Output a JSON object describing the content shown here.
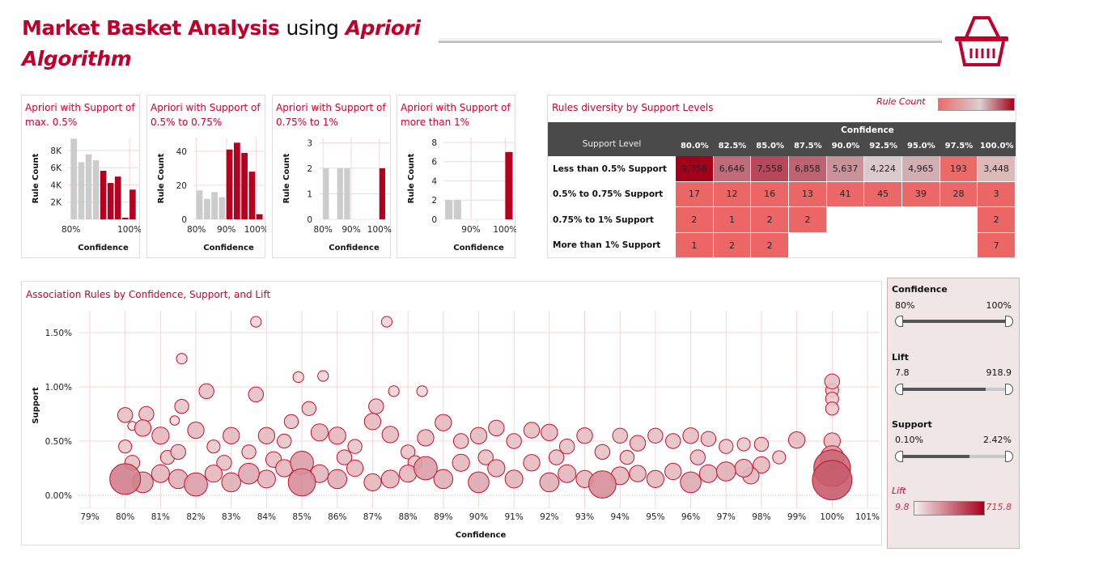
{
  "header": {
    "title_part1": "Market Basket Analysis",
    "title_part2": "using",
    "title_part3": "Apriori",
    "title_part4": "Algorithm",
    "basket_icon": "shopping-basket-icon"
  },
  "colors": {
    "accent": "#c0002a",
    "bar_red": "#b5001f",
    "bar_grey": "#cccccc",
    "header_dark": "#4a4a4a",
    "filter_bg": "#efe6e5"
  },
  "bar_charts": [
    {
      "title_line1": "Apriori with Support of",
      "title_line2": "max. 0.5%",
      "ylabel": "Rule Count",
      "xlabel": "Confidence"
    },
    {
      "title_line1": "Apriori with Support of",
      "title_line2": "0.5% to 0.75%",
      "ylabel": "Rule Count",
      "xlabel": "Confidence"
    },
    {
      "title_line1": "Apriori with Support of",
      "title_line2": "0.75% to 1%",
      "ylabel": "Rule Count",
      "xlabel": "Confidence"
    },
    {
      "title_line1": "Apriori with Support of",
      "title_line2": "more than 1%",
      "ylabel": "Rule Count",
      "xlabel": "Confidence"
    }
  ],
  "heatmap": {
    "title": "Rules diversity by Support Levels",
    "legend_title": "Rule Count",
    "column_group": "Confidence",
    "row_header": "Support Level",
    "columns": [
      "80.0%",
      "82.5%",
      "85.0%",
      "87.5%",
      "90.0%",
      "92.5%",
      "95.0%",
      "97.5%",
      "100.0%"
    ],
    "rows": [
      {
        "label": "Less than 0.5% Support",
        "values": [
          "9,358",
          "6,646",
          "7,558",
          "6,858",
          "5,637",
          "4,224",
          "4,965",
          "193",
          "3,448"
        ]
      },
      {
        "label": "0.5% to 0.75% Support",
        "values": [
          "17",
          "12",
          "16",
          "13",
          "41",
          "45",
          "39",
          "28",
          "3"
        ]
      },
      {
        "label": "0.75% to 1% Support",
        "values": [
          "2",
          "1",
          "2",
          "2",
          "",
          "",
          "",
          "",
          "2"
        ]
      },
      {
        "label": "More than 1% Support",
        "values": [
          "1",
          "2",
          "2",
          "",
          "",
          "",
          "",
          "",
          "7"
        ]
      }
    ]
  },
  "scatter": {
    "title": "Association Rules by Confidence, Support, and Lift"
  },
  "filters": {
    "confidence": {
      "label": "Confidence",
      "min": "80%",
      "max": "100%",
      "low_fraction": 0,
      "high_fraction": 1
    },
    "lift": {
      "label": "Lift",
      "min": "7.8",
      "max": "918.9",
      "low_fraction": 0,
      "high_fraction": 0.78
    },
    "support": {
      "label": "Support",
      "min": "0.10%",
      "max": "2.42%",
      "low_fraction": 0,
      "high_fraction": 0.64
    },
    "lift_legend": {
      "label": "Lift",
      "min": "9.8",
      "max": "715.8"
    }
  },
  "chart_data": [
    {
      "type": "bar",
      "title": "Apriori with Support of max. 0.5%",
      "xlabel": "Confidence",
      "ylabel": "Rule Count",
      "categories": [
        80,
        82.5,
        85,
        87.5,
        90,
        92.5,
        95,
        97.5,
        100
      ],
      "values": [
        9358,
        6646,
        7558,
        6858,
        5637,
        4224,
        4965,
        193,
        3448
      ],
      "highlight_from": 90,
      "xlim": [
        79,
        103
      ],
      "ylim": [
        0,
        9500
      ],
      "yticks": [
        "2K",
        "4K",
        "6K",
        "8K"
      ],
      "ytick_values": [
        2000,
        4000,
        6000,
        8000
      ],
      "xticks": [
        "80%",
        "100%"
      ],
      "xtick_values": [
        80,
        100
      ]
    },
    {
      "type": "bar",
      "title": "Apriori with Support of 0.5% to 0.75%",
      "xlabel": "Confidence",
      "ylabel": "Rule Count",
      "categories": [
        80,
        82.5,
        85,
        87.5,
        90,
        92.5,
        95,
        97.5,
        100
      ],
      "values": [
        17,
        12,
        16,
        13,
        41,
        45,
        39,
        28,
        3
      ],
      "highlight_from": 90,
      "xlim": [
        79,
        102.5
      ],
      "ylim": [
        0,
        48
      ],
      "yticks": [
        "0",
        "20",
        "40"
      ],
      "ytick_values": [
        0,
        20,
        40
      ],
      "xticks": [
        "80%",
        "90%",
        "100%"
      ],
      "xtick_values": [
        80,
        90,
        100
      ]
    },
    {
      "type": "bar",
      "title": "Apriori with Support of 0.75% to 1%",
      "xlabel": "Confidence",
      "ylabel": "Rule Count",
      "categories": [
        80,
        82.5,
        85,
        87.5,
        90,
        92.5,
        95,
        97.5,
        100
      ],
      "values": [
        2,
        0,
        2,
        2,
        0,
        0,
        0,
        0,
        2
      ],
      "highlight_from": 100,
      "xlim": [
        78.5,
        103.5
      ],
      "ylim": [
        0,
        3.2
      ],
      "yticks": [
        "0",
        "1",
        "2",
        "3"
      ],
      "ytick_values": [
        0,
        1,
        2,
        3
      ],
      "xticks": [
        "80%",
        "90%",
        "100%"
      ],
      "xtick_values": [
        80,
        90,
        100
      ]
    },
    {
      "type": "bar",
      "title": "Apriori with Support of more than 1%",
      "xlabel": "Confidence",
      "ylabel": "Rule Count",
      "categories": [
        80,
        82.5,
        85,
        87.5,
        90,
        92.5,
        95,
        97.5,
        100
      ],
      "values": [
        1,
        2,
        2,
        0,
        0,
        0,
        0,
        0,
        7
      ],
      "highlight_from": 100,
      "xlim": [
        82,
        102.5
      ],
      "ylim": [
        0,
        8.5
      ],
      "yticks": [
        "0",
        "2",
        "4",
        "6",
        "8"
      ],
      "ytick_values": [
        0,
        2,
        4,
        6,
        8
      ],
      "xticks": [
        "90%",
        "100%"
      ],
      "xtick_values": [
        90,
        100
      ]
    },
    {
      "type": "scatter",
      "title": "Association Rules by Confidence, Support, and Lift",
      "xlabel": "Confidence",
      "ylabel": "Support",
      "xlim": [
        78.5,
        101.5
      ],
      "ylim": [
        -0.12,
        1.7
      ],
      "xticks": [
        "79%",
        "80%",
        "81%",
        "82%",
        "83%",
        "84%",
        "85%",
        "86%",
        "87%",
        "88%",
        "89%",
        "90%",
        "91%",
        "92%",
        "93%",
        "94%",
        "95%",
        "96%",
        "97%",
        "98%",
        "99%",
        "100%",
        "101%"
      ],
      "yticks": [
        "0.00%",
        "0.50%",
        "1.00%",
        "1.50%"
      ],
      "ytick_values": [
        0,
        0.5,
        1,
        1.5
      ],
      "color_by": "lift",
      "lift_range": [
        9.8,
        715.8
      ],
      "points_conf_support_lift": [
        [
          81.6,
          1.26,
          20
        ],
        [
          82.3,
          0.96,
          60
        ],
        [
          81.6,
          0.82,
          50
        ],
        [
          83.7,
          1.6,
          20
        ],
        [
          83.7,
          0.93,
          60
        ],
        [
          84.9,
          1.09,
          20
        ],
        [
          85.6,
          1.1,
          20
        ],
        [
          87.4,
          1.6,
          20
        ],
        [
          87.6,
          0.96,
          20
        ],
        [
          88.4,
          0.96,
          20
        ],
        [
          80,
          0.74,
          60
        ],
        [
          80.6,
          0.75,
          60
        ],
        [
          80.2,
          0.64,
          10
        ],
        [
          81.4,
          0.69,
          12
        ],
        [
          85.2,
          0.8,
          50
        ],
        [
          87.1,
          0.82,
          60
        ],
        [
          84.7,
          0.68,
          50
        ],
        [
          100,
          1.05,
          60
        ],
        [
          100,
          0.97,
          40
        ],
        [
          100,
          0.89,
          40
        ],
        [
          100,
          0.8,
          40
        ],
        [
          100,
          0.5,
          80
        ],
        [
          100,
          0.35,
          200
        ],
        [
          100,
          0.25,
          600
        ],
        [
          100,
          0.14,
          715
        ],
        [
          99,
          0.51,
          80
        ],
        [
          80,
          0.15,
          400
        ],
        [
          80,
          0.45,
          40
        ],
        [
          80.5,
          0.12,
          150
        ],
        [
          80.5,
          0.62,
          80
        ],
        [
          81,
          0.2,
          100
        ],
        [
          81,
          0.55,
          90
        ],
        [
          81.5,
          0.15,
          120
        ],
        [
          81.5,
          0.4,
          60
        ],
        [
          82,
          0.1,
          200
        ],
        [
          82,
          0.6,
          80
        ],
        [
          82.5,
          0.2,
          90
        ],
        [
          82.5,
          0.45,
          40
        ],
        [
          83,
          0.12,
          120
        ],
        [
          83,
          0.55,
          80
        ],
        [
          83.5,
          0.2,
          150
        ],
        [
          83.5,
          0.4,
          50
        ],
        [
          84,
          0.15,
          100
        ],
        [
          84,
          0.55,
          80
        ],
        [
          84.5,
          0.25,
          90
        ],
        [
          84.5,
          0.5,
          50
        ],
        [
          85,
          0.12,
          300
        ],
        [
          85,
          0.3,
          200
        ],
        [
          85.5,
          0.2,
          100
        ],
        [
          85.5,
          0.58,
          90
        ],
        [
          86,
          0.15,
          120
        ],
        [
          86,
          0.55,
          90
        ],
        [
          86.5,
          0.25,
          80
        ],
        [
          86.5,
          0.45,
          50
        ],
        [
          87,
          0.12,
          90
        ],
        [
          87,
          0.68,
          80
        ],
        [
          87.5,
          0.15,
          100
        ],
        [
          87.5,
          0.56,
          80
        ],
        [
          88,
          0.2,
          90
        ],
        [
          88,
          0.4,
          50
        ],
        [
          88.5,
          0.25,
          200
        ],
        [
          88.5,
          0.53,
          80
        ],
        [
          89,
          0.15,
          120
        ],
        [
          89,
          0.67,
          80
        ],
        [
          89.5,
          0.3,
          90
        ],
        [
          89.5,
          0.5,
          60
        ],
        [
          90,
          0.12,
          150
        ],
        [
          90,
          0.55,
          80
        ],
        [
          90.5,
          0.25,
          90
        ],
        [
          90.5,
          0.62,
          70
        ],
        [
          91,
          0.15,
          100
        ],
        [
          91,
          0.5,
          60
        ],
        [
          91.5,
          0.3,
          80
        ],
        [
          91.5,
          0.6,
          70
        ],
        [
          92,
          0.12,
          120
        ],
        [
          92,
          0.58,
          80
        ],
        [
          92.5,
          0.2,
          100
        ],
        [
          92.5,
          0.45,
          60
        ],
        [
          93,
          0.15,
          90
        ],
        [
          93,
          0.55,
          70
        ],
        [
          93.5,
          0.1,
          300
        ],
        [
          93.5,
          0.4,
          60
        ],
        [
          94,
          0.18,
          100
        ],
        [
          94,
          0.55,
          60
        ],
        [
          94.5,
          0.2,
          80
        ],
        [
          94.5,
          0.48,
          70
        ],
        [
          95,
          0.15,
          90
        ],
        [
          95,
          0.55,
          60
        ],
        [
          95.5,
          0.22,
          80
        ],
        [
          95.5,
          0.5,
          60
        ],
        [
          96,
          0.12,
          150
        ],
        [
          96,
          0.55,
          70
        ],
        [
          96.5,
          0.2,
          100
        ],
        [
          96.5,
          0.52,
          60
        ],
        [
          97,
          0.22,
          120
        ],
        [
          97,
          0.45,
          50
        ],
        [
          97.5,
          0.25,
          100
        ],
        [
          97.5,
          0.47,
          40
        ],
        [
          98,
          0.28,
          80
        ],
        [
          98,
          0.47,
          50
        ],
        [
          98.5,
          0.35,
          40
        ],
        [
          80.2,
          0.3,
          60
        ],
        [
          81.2,
          0.35,
          50
        ],
        [
          82.8,
          0.3,
          60
        ],
        [
          84.2,
          0.33,
          70
        ],
        [
          86.2,
          0.35,
          60
        ],
        [
          88.2,
          0.3,
          50
        ],
        [
          90.2,
          0.35,
          60
        ],
        [
          92.2,
          0.35,
          60
        ],
        [
          94.2,
          0.35,
          50
        ],
        [
          96.2,
          0.35,
          60
        ],
        [
          97.7,
          0.18,
          80
        ]
      ]
    }
  ]
}
